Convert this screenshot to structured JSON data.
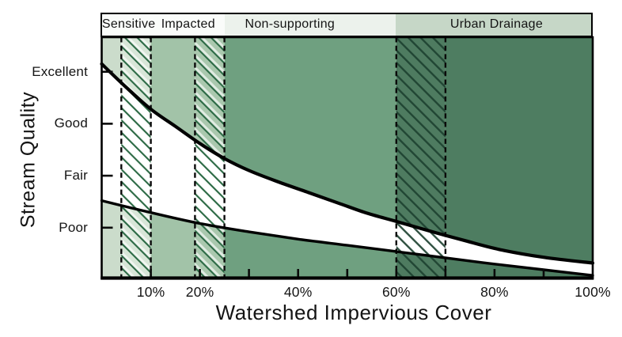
{
  "header": {
    "sections": [
      {
        "from_pct": 0,
        "to_pct": 25,
        "color": "#fafcfa"
      },
      {
        "from_pct": 25,
        "to_pct": 60,
        "color": "#ecf2ec"
      },
      {
        "from_pct": 60,
        "to_pct": 100,
        "color": "#c6d7c7"
      }
    ]
  },
  "chart_data": {
    "type": "area",
    "title": "",
    "xlabel": "Watershed Impervious Cover",
    "ylabel": "Stream Quality",
    "xlim": [
      0,
      100
    ],
    "x_unit": "%",
    "grid": false,
    "legend": "none",
    "classification_zones": [
      {
        "name": "Sensitive",
        "range_pct": [
          0,
          10
        ],
        "label_center_pct": 5.6
      },
      {
        "name": "Impacted",
        "range_pct": [
          10,
          25
        ],
        "label_center_pct": 17.7
      },
      {
        "name": "Non-supporting",
        "range_pct": [
          25,
          60
        ],
        "label_center_pct": 38.4
      },
      {
        "name": "Urban Drainage",
        "range_pct": [
          60,
          100
        ],
        "label_center_pct": 80.5
      }
    ],
    "zone_fills": [
      {
        "from_pct": 0,
        "to_pct": 4,
        "color": "#cbdccb"
      },
      {
        "from_pct": 10,
        "to_pct": 19,
        "color": "#a2c3a8"
      },
      {
        "from_pct": 25,
        "to_pct": 60,
        "color": "#6fa080"
      },
      {
        "from_pct": 70,
        "to_pct": 100,
        "color": "#4e7d61"
      }
    ],
    "transition_bands": [
      {
        "from_pct": 4,
        "to_pct": 10,
        "fill": "#d8e6d8",
        "hatch": "light"
      },
      {
        "from_pct": 19,
        "to_pct": 25,
        "fill": "#aac8ae",
        "hatch": "light"
      },
      {
        "from_pct": 60,
        "to_pct": 70,
        "fill": "#4e7b60",
        "hatch": "dark"
      }
    ],
    "y_ticks": [
      {
        "label": "Excellent",
        "level": 4
      },
      {
        "label": "Good",
        "level": 3
      },
      {
        "label": "Fair",
        "level": 2
      },
      {
        "label": "Poor",
        "level": 1
      }
    ],
    "x_ticks": [
      {
        "label": "10%",
        "value": 10
      },
      {
        "label": "20%",
        "value": 20
      },
      {
        "label": "40%",
        "value": 40
      },
      {
        "label": "60%",
        "value": 60
      },
      {
        "label": "80%",
        "value": 80
      },
      {
        "label": "100%",
        "value": 100
      }
    ],
    "x_minor_tick_values": [
      10,
      20,
      30,
      40,
      50,
      60,
      70,
      80,
      90
    ],
    "series": [
      {
        "name": "upper stream quality boundary",
        "points": [
          [
            0,
            4.15
          ],
          [
            5,
            3.7
          ],
          [
            10,
            3.28
          ],
          [
            15,
            2.95
          ],
          [
            20,
            2.62
          ],
          [
            25,
            2.33
          ],
          [
            30,
            2.1
          ],
          [
            36,
            1.88
          ],
          [
            42,
            1.68
          ],
          [
            48,
            1.48
          ],
          [
            54,
            1.28
          ],
          [
            60,
            1.12
          ],
          [
            67,
            0.93
          ],
          [
            74,
            0.75
          ],
          [
            81,
            0.58
          ],
          [
            90,
            0.43
          ],
          [
            100,
            0.32
          ]
        ]
      },
      {
        "name": "lower stream quality boundary",
        "points": [
          [
            0,
            1.52
          ],
          [
            10,
            1.29
          ],
          [
            20,
            1.08
          ],
          [
            30,
            0.92
          ],
          [
            40,
            0.78
          ],
          [
            50,
            0.66
          ],
          [
            60,
            0.54
          ],
          [
            70,
            0.42
          ],
          [
            80,
            0.3
          ],
          [
            90,
            0.19
          ],
          [
            100,
            0.08
          ]
        ]
      }
    ],
    "colors": {
      "curve": "#000000",
      "axis": "#0a0a0a",
      "gap_fill": "#ffffff",
      "hatch_light_line": "#2c6a45",
      "hatch_light_highlight": "#ffffff",
      "hatch_dark_line": "#1d4130",
      "text": "#141414"
    }
  }
}
